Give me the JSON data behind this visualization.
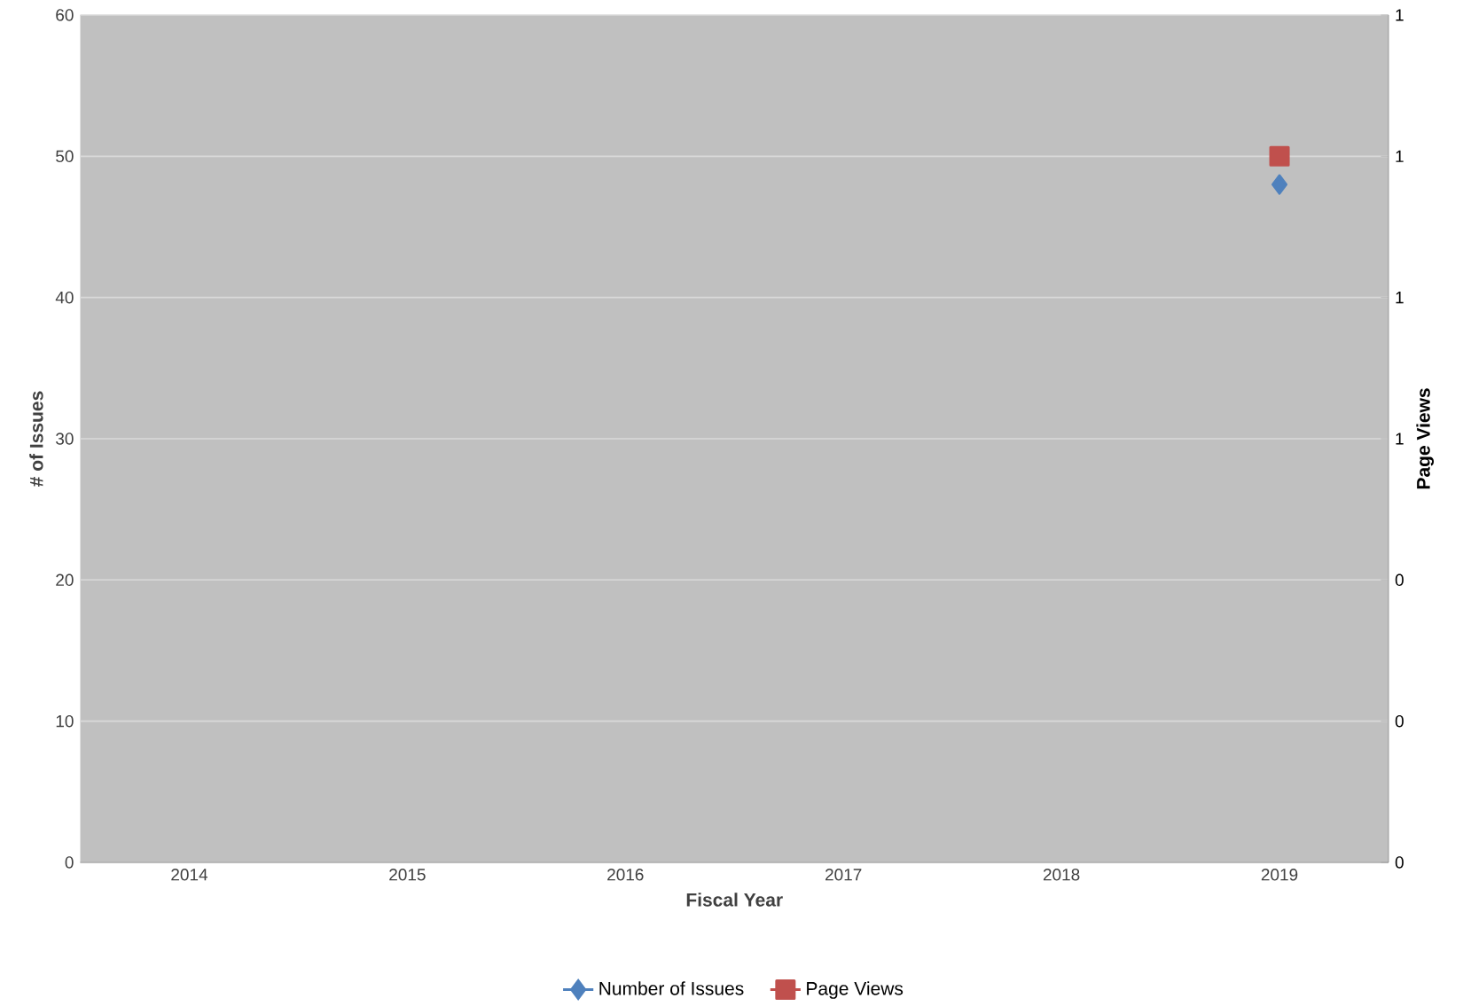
{
  "chart_data": {
    "type": "line",
    "xlabel": "Fiscal Year",
    "ylabel": "# of Issues",
    "y2label": "Page Views",
    "categories": [
      "2014",
      "2015",
      "2016",
      "2017",
      "2018",
      "2019"
    ],
    "series": [
      {
        "name": "Number of Issues",
        "color": "#4f81bd",
        "marker": "diamond",
        "values": [
          null,
          null,
          null,
          null,
          null,
          48
        ]
      },
      {
        "name": "Page Views",
        "color": "#c0504d",
        "marker": "square",
        "axis": "y2",
        "values": [
          null,
          null,
          null,
          null,
          null,
          1
        ]
      }
    ],
    "ylim": [
      0,
      60
    ],
    "yticks": [
      0,
      10,
      20,
      30,
      40,
      50,
      60
    ],
    "y2lim": [
      0,
      1.2
    ],
    "y2ticks": [
      {
        "value": 0,
        "label": "0"
      },
      {
        "value": 0.2,
        "label": "0"
      },
      {
        "value": 0.4,
        "label": "0"
      },
      {
        "value": 0.6,
        "label": "1"
      },
      {
        "value": 0.8,
        "label": "1"
      },
      {
        "value": 1.0,
        "label": "1"
      },
      {
        "value": 1.2,
        "label": "1"
      }
    ],
    "grid": "y",
    "legend": "bottom",
    "line_style": "solid"
  }
}
